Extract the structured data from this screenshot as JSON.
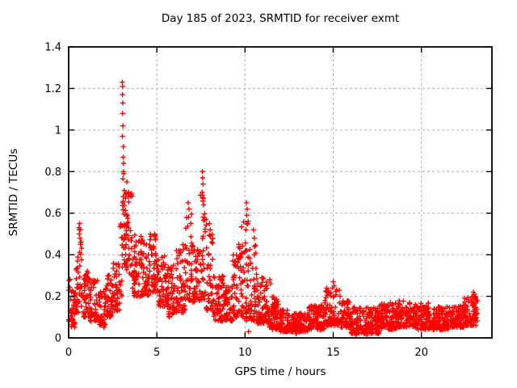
{
  "chart_data": {
    "type": "scatter",
    "title": "Day 185 of 2023, SRMTID for receiver exmt",
    "xlabel": "GPS time / hours",
    "ylabel": "SRMTID / TECUs",
    "xlim": [
      0,
      24
    ],
    "ylim": [
      0,
      1.4
    ],
    "xticks": [
      0,
      5,
      10,
      15,
      20
    ],
    "xtick_labels": [
      "0",
      "5",
      "10",
      "15",
      "20"
    ],
    "yticks": [
      0,
      0.2,
      0.4,
      0.6,
      0.8,
      1,
      1.2,
      1.4
    ],
    "ytick_labels": [
      "0",
      "0.2",
      "0.4",
      "0.6",
      "0.8",
      "1",
      "1.2",
      "1.4"
    ],
    "grid": true,
    "legend": "none",
    "marker": "plus",
    "marker_color": "#ff0000",
    "grid_color": "#b0b0b0",
    "axis_color": "#000000",
    "background_color": "#ffffff",
    "x_data_range": [
      0.0,
      23.25
    ],
    "peak_value": 1.23,
    "peak_time": 3.05,
    "render_seed": 185,
    "y_bias_power": 1.5,
    "band_envelope": [
      [
        0.0,
        0.15,
        0.08,
        0.3,
        15
      ],
      [
        0.15,
        0.4,
        0.05,
        0.25,
        25
      ],
      [
        0.4,
        0.6,
        0.12,
        0.4,
        20
      ],
      [
        0.6,
        0.8,
        0.15,
        0.55,
        20
      ],
      [
        0.8,
        1.2,
        0.1,
        0.33,
        40
      ],
      [
        1.2,
        1.7,
        0.08,
        0.28,
        50
      ],
      [
        1.7,
        2.1,
        0.06,
        0.24,
        40
      ],
      [
        2.1,
        2.5,
        0.1,
        0.32,
        40
      ],
      [
        2.5,
        2.9,
        0.13,
        0.38,
        40
      ],
      [
        2.9,
        3.05,
        0.2,
        0.6,
        15
      ],
      [
        3.05,
        3.25,
        0.35,
        0.78,
        25
      ],
      [
        3.25,
        3.6,
        0.3,
        0.72,
        40
      ],
      [
        3.6,
        4.1,
        0.2,
        0.5,
        50
      ],
      [
        4.1,
        4.6,
        0.2,
        0.47,
        50
      ],
      [
        4.6,
        5.1,
        0.22,
        0.5,
        50
      ],
      [
        5.1,
        5.6,
        0.15,
        0.4,
        50
      ],
      [
        5.6,
        6.1,
        0.1,
        0.35,
        50
      ],
      [
        6.1,
        6.6,
        0.12,
        0.45,
        50
      ],
      [
        6.6,
        7.0,
        0.18,
        0.6,
        40
      ],
      [
        7.0,
        7.45,
        0.17,
        0.45,
        45
      ],
      [
        7.45,
        7.8,
        0.18,
        0.7,
        35
      ],
      [
        7.8,
        8.2,
        0.13,
        0.5,
        40
      ],
      [
        8.2,
        8.8,
        0.08,
        0.3,
        60
      ],
      [
        8.8,
        9.3,
        0.08,
        0.26,
        50
      ],
      [
        9.3,
        9.8,
        0.1,
        0.45,
        50
      ],
      [
        9.8,
        10.25,
        0.08,
        0.58,
        45
      ],
      [
        10.25,
        10.7,
        0.08,
        0.45,
        45
      ],
      [
        10.7,
        11.3,
        0.07,
        0.3,
        60
      ],
      [
        11.3,
        12.0,
        0.04,
        0.2,
        70
      ],
      [
        12.0,
        12.6,
        0.03,
        0.14,
        60
      ],
      [
        12.6,
        13.6,
        0.03,
        0.12,
        100
      ],
      [
        13.6,
        14.5,
        0.04,
        0.16,
        90
      ],
      [
        14.5,
        15.4,
        0.06,
        0.24,
        90
      ],
      [
        15.4,
        16.0,
        0.05,
        0.18,
        60
      ],
      [
        16.0,
        16.6,
        0.02,
        0.15,
        60
      ],
      [
        16.6,
        17.6,
        0.02,
        0.15,
        100
      ],
      [
        17.6,
        18.6,
        0.04,
        0.17,
        100
      ],
      [
        18.6,
        19.6,
        0.05,
        0.18,
        100
      ],
      [
        19.6,
        20.6,
        0.04,
        0.17,
        100
      ],
      [
        20.6,
        21.6,
        0.04,
        0.15,
        100
      ],
      [
        21.6,
        22.4,
        0.05,
        0.16,
        80
      ],
      [
        22.4,
        23.1,
        0.06,
        0.2,
        65
      ],
      [
        23.0,
        23.25,
        0.07,
        0.18,
        15
      ]
    ],
    "outlier_points": [
      [
        3.04,
        1.23
      ],
      [
        3.06,
        1.21
      ],
      [
        3.05,
        1.17
      ],
      [
        3.07,
        1.13
      ],
      [
        3.06,
        1.08
      ],
      [
        3.08,
        1.02
      ],
      [
        3.05,
        0.97
      ],
      [
        3.1,
        0.92
      ],
      [
        3.09,
        0.87
      ],
      [
        3.12,
        0.84
      ],
      [
        3.11,
        0.8
      ],
      [
        3.13,
        0.79
      ],
      [
        3.3,
        0.75
      ],
      [
        3.4,
        0.7
      ],
      [
        7.58,
        0.8
      ],
      [
        7.6,
        0.77
      ],
      [
        7.62,
        0.74
      ],
      [
        7.57,
        0.7
      ],
      [
        7.63,
        0.67
      ],
      [
        7.65,
        0.64
      ],
      [
        6.78,
        0.65
      ],
      [
        6.82,
        0.62
      ],
      [
        6.8,
        0.58
      ],
      [
        10.08,
        0.65
      ],
      [
        10.12,
        0.62
      ],
      [
        10.1,
        0.59
      ],
      [
        10.15,
        0.55
      ],
      [
        10.05,
        0.52
      ],
      [
        0.62,
        0.55
      ],
      [
        0.58,
        0.53
      ],
      [
        0.66,
        0.52
      ],
      [
        0.6,
        0.5
      ],
      [
        0.64,
        0.48
      ],
      [
        0.68,
        0.46
      ],
      [
        7.98,
        0.55
      ],
      [
        8.02,
        0.52
      ],
      [
        10.48,
        0.52
      ],
      [
        10.52,
        0.48
      ],
      [
        10.55,
        0.44
      ],
      [
        4.88,
        0.5
      ],
      [
        4.92,
        0.48
      ],
      [
        9.65,
        0.45
      ],
      [
        9.7,
        0.43
      ],
      [
        11.4,
        0.28
      ],
      [
        11.45,
        0.26
      ],
      [
        15.0,
        0.27
      ],
      [
        15.05,
        0.25
      ],
      [
        14.95,
        0.24
      ],
      [
        22.95,
        0.22
      ],
      [
        23.0,
        0.21
      ],
      [
        23.05,
        0.2
      ],
      [
        12.9,
        0.02
      ],
      [
        16.3,
        0.015
      ],
      [
        16.9,
        0.012
      ],
      [
        10.2,
        0.03
      ],
      [
        2.0,
        0.05
      ]
    ]
  }
}
